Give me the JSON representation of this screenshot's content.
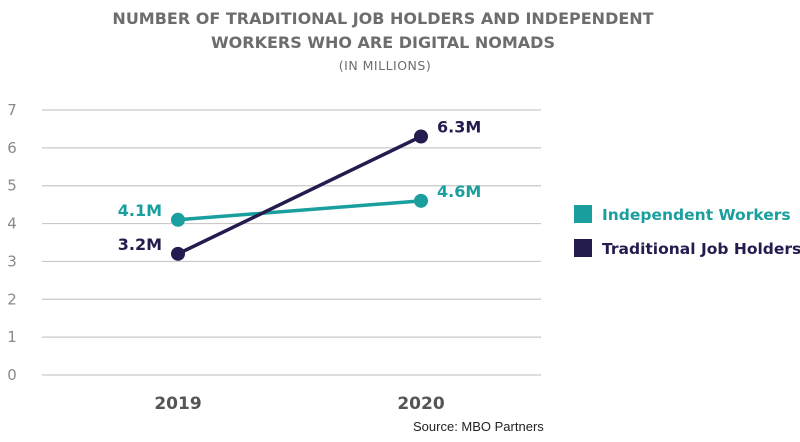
{
  "chart_data": {
    "type": "line",
    "title": [
      "NUMBER OF TRADITIONAL JOB HOLDERS AND INDEPENDENT",
      "WORKERS WHO ARE DIGITAL NOMADS"
    ],
    "subtitle": "(IN MILLIONS)",
    "categories": [
      "2019",
      "2020"
    ],
    "ylim": [
      0,
      7
    ],
    "yticks": [
      "0",
      "1",
      "2",
      "3",
      "4",
      "5",
      "6",
      "7"
    ],
    "grid": true,
    "legend_position": "right",
    "series": [
      {
        "name": "Independent Workers",
        "values": [
          4.1,
          4.6
        ],
        "labels": [
          "4.1M",
          "4.6M"
        ],
        "color": "#1a9e9e"
      },
      {
        "name": "Traditional Job Holders",
        "values": [
          3.2,
          6.3
        ],
        "labels": [
          "3.2M",
          "6.3M"
        ],
        "color": "#241c4f"
      }
    ],
    "source": "Source:  MBO Partners"
  }
}
